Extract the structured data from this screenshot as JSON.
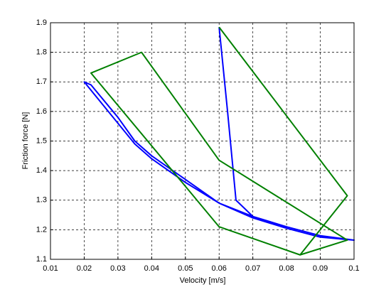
{
  "chart_data": {
    "type": "line",
    "x_label": "Velocity [m/s]",
    "y_label": "Friction force [N]",
    "xlim": [
      0.01,
      0.1
    ],
    "ylim": [
      1.1,
      1.9
    ],
    "xticks": [
      0.01,
      0.02,
      0.03,
      0.04,
      0.05,
      0.06,
      0.07,
      0.08,
      0.09,
      0.1
    ],
    "yticks": [
      1.1,
      1.2,
      1.3,
      1.4,
      1.5,
      1.6,
      1.7,
      1.8,
      1.9
    ],
    "grid": true,
    "series": [
      {
        "color": "#0000ff",
        "x": [
          0.06,
          0.0625,
          0.065,
          0.07,
          0.08,
          0.09,
          0.1,
          0.09,
          0.08,
          0.07,
          0.06,
          0.05,
          0.04,
          0.035,
          0.03,
          0.025,
          0.02,
          0.022,
          0.03,
          0.035,
          0.04,
          0.05,
          0.06,
          0.07,
          0.08,
          0.09,
          0.1
        ],
        "values": [
          1.885,
          1.6,
          1.3,
          1.245,
          1.21,
          1.18,
          1.165,
          1.175,
          1.205,
          1.24,
          1.29,
          1.36,
          1.44,
          1.49,
          1.56,
          1.63,
          1.7,
          1.69,
          1.58,
          1.5,
          1.45,
          1.37,
          1.29,
          1.245,
          1.21,
          1.18,
          1.165
        ]
      },
      {
        "color": "#008000",
        "x": [
          0.06,
          0.098,
          0.084,
          0.098,
          0.06,
          0.037,
          0.022,
          0.06,
          0.084
        ],
        "values": [
          1.885,
          1.315,
          1.115,
          1.165,
          1.435,
          1.8,
          1.73,
          1.21,
          1.115
        ]
      }
    ]
  }
}
